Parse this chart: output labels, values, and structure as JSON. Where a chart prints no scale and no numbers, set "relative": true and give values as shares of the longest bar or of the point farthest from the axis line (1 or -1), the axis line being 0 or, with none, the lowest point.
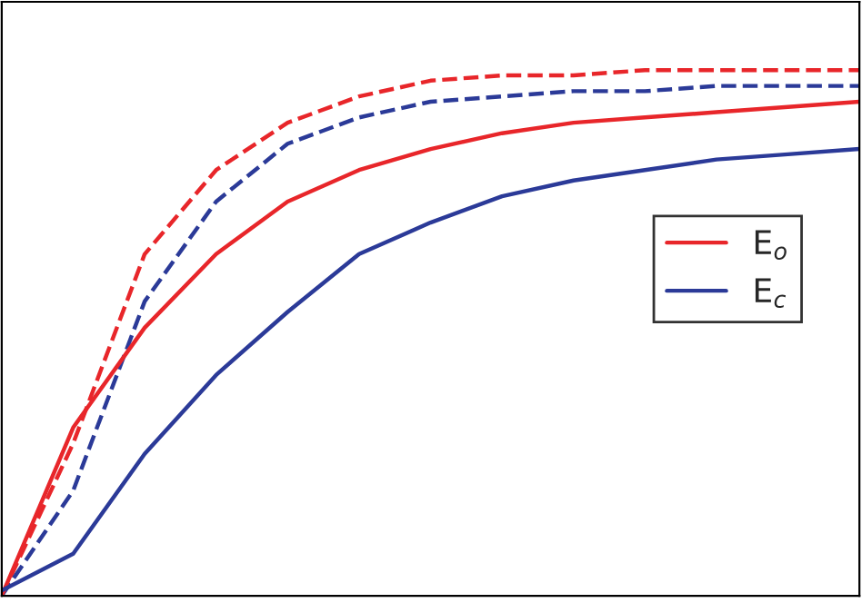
{
  "chart_data": {
    "type": "line",
    "relative": true,
    "legend": "right",
    "categories": [
      null,
      null,
      null,
      null,
      null,
      null,
      null,
      null,
      null,
      null,
      null,
      null,
      null
    ],
    "series": [
      {
        "color": "#e8262a",
        "line_style": "dashed",
        "values": [
          0,
          0.29,
          0.65,
          0.81,
          0.9,
          0.95,
          0.98,
          0.99,
          0.99,
          1,
          1,
          1,
          1
        ]
      },
      {
        "color": "#2b3a98",
        "line_style": "dashed",
        "values": [
          0,
          0.2,
          0.56,
          0.75,
          0.86,
          0.91,
          0.94,
          0.95,
          0.96,
          0.96,
          0.97,
          0.97,
          0.97
        ]
      },
      {
        "name": "E$_{o}$",
        "color": "#e8262a",
        "line_style": "solid",
        "values": [
          0,
          0.32,
          0.51,
          0.65,
          0.75,
          0.81,
          0.85,
          0.88,
          0.9,
          0.91,
          0.92,
          0.93,
          0.94
        ]
      },
      {
        "name": "E$_{c}$",
        "color": "#2b3a98",
        "line_style": "solid",
        "values": [
          0.01,
          0.08,
          0.27,
          0.42,
          0.54,
          0.65,
          0.71,
          0.76,
          0.79,
          0.81,
          0.83,
          0.84,
          0.85
        ]
      }
    ]
  }
}
